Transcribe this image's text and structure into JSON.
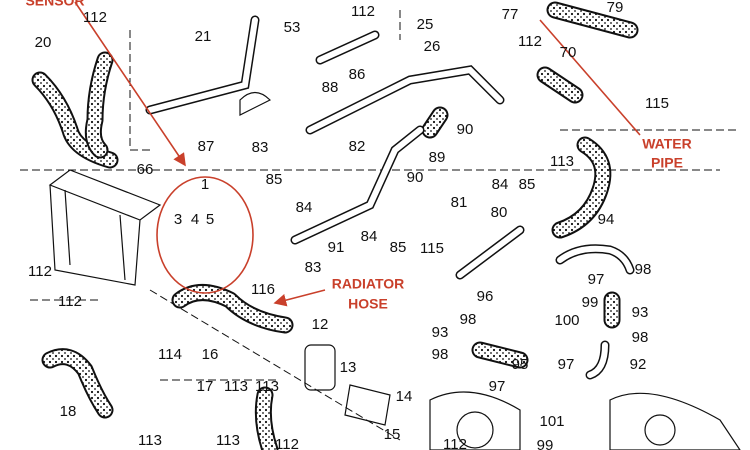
{
  "annotations": {
    "sensor": "SENSOR",
    "water_pipe": [
      "WATER",
      "PIPE"
    ],
    "radiator_hose": [
      "RADIATOR",
      "HOSE"
    ]
  },
  "callouts": [
    "112",
    "20",
    "21",
    "53",
    "112",
    "25",
    "77",
    "79",
    "26",
    "112",
    "70",
    "86",
    "88",
    "115",
    "66",
    "87",
    "83",
    "82",
    "90",
    "89",
    "90",
    "84",
    "85",
    "113",
    "1",
    "85",
    "84",
    "3",
    "4",
    "5",
    "81",
    "80",
    "94",
    "84",
    "85",
    "91",
    "83",
    "115",
    "112",
    "98",
    "97",
    "116",
    "96",
    "99",
    "93",
    "112",
    "12",
    "100",
    "98",
    "93",
    "98",
    "114",
    "16",
    "98",
    "95",
    "97",
    "92",
    "13",
    "18",
    "17",
    "113",
    "113",
    "14",
    "97",
    "101",
    "113",
    "113",
    "112",
    "15",
    "112",
    "99"
  ]
}
